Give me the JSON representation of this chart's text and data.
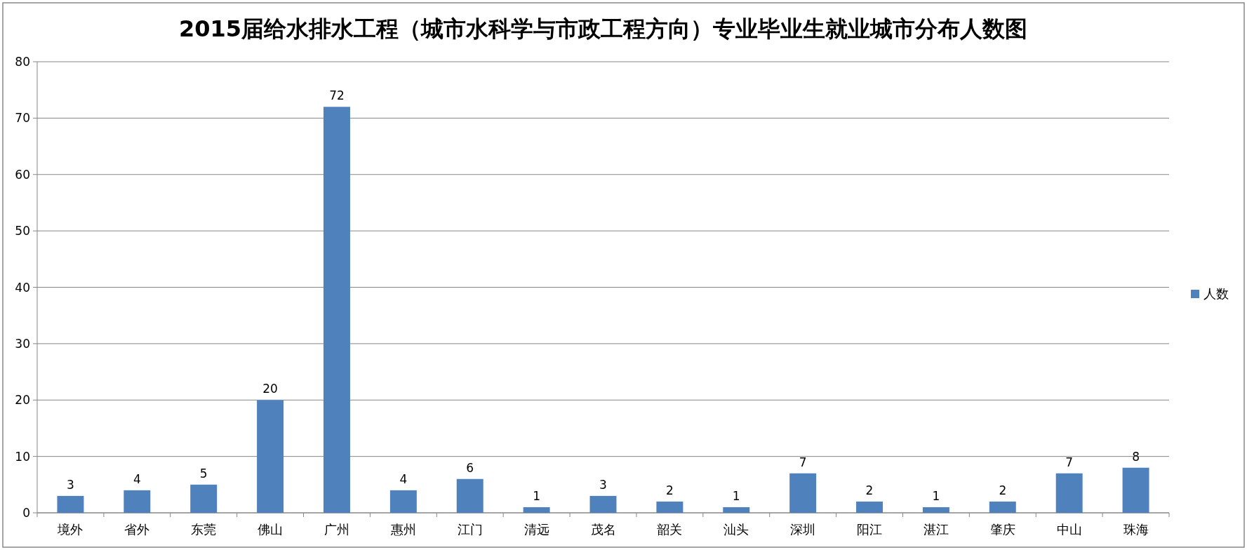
{
  "chart_data": {
    "type": "bar",
    "title": "2015届给水排水工程（城市水科学与市政工程方向）专业毕业生就业城市分布人数图",
    "categories": [
      "境外",
      "省外",
      "东莞",
      "佛山",
      "广州",
      "惠州",
      "江门",
      "清远",
      "茂名",
      "韶关",
      "汕头",
      "深圳",
      "阳江",
      "湛江",
      "肇庆",
      "中山",
      "珠海"
    ],
    "series": [
      {
        "name": "人数",
        "color": "#4f81bd",
        "values": [
          3,
          4,
          5,
          20,
          72,
          4,
          6,
          1,
          3,
          2,
          1,
          7,
          2,
          1,
          2,
          7,
          8
        ]
      }
    ],
    "ylim": [
      0,
      80
    ],
    "yticks": [
      0,
      10,
      20,
      30,
      40,
      50,
      60,
      70,
      80
    ],
    "grid": "y",
    "legend": "right",
    "data_labels": true
  }
}
